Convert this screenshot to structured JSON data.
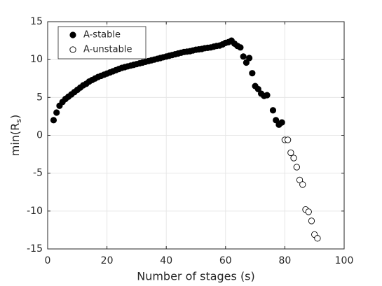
{
  "chart_data": {
    "type": "scatter",
    "xlabel": "Number of stages (s)",
    "ylabel": {
      "main": "min(R",
      "sub": "s",
      "end": ")"
    },
    "xlim": [
      0,
      100
    ],
    "xticks": [
      0,
      20,
      40,
      60,
      80,
      100
    ],
    "ylim": [
      -15,
      15
    ],
    "yticks": [
      -15,
      -10,
      -5,
      0,
      5,
      10,
      15
    ],
    "grid": true,
    "legend": "upper-left",
    "series": [
      {
        "name": "A-stable",
        "color": "#000000",
        "filled": true,
        "x": [
          2,
          3,
          4,
          5,
          6,
          7,
          8,
          9,
          10,
          11,
          12,
          13,
          14,
          15,
          16,
          17,
          18,
          19,
          20,
          21,
          22,
          23,
          24,
          25,
          26,
          27,
          28,
          29,
          30,
          31,
          32,
          33,
          34,
          35,
          36,
          37,
          38,
          39,
          40,
          41,
          42,
          43,
          44,
          45,
          46,
          47,
          48,
          49,
          50,
          51,
          52,
          53,
          54,
          55,
          56,
          57,
          58,
          59,
          60,
          61,
          62,
          63,
          64,
          65,
          66,
          67,
          68,
          69,
          70,
          71,
          72,
          73,
          74,
          76,
          77,
          78,
          79
        ],
        "values": [
          2.0,
          3.0,
          3.9,
          4.4,
          4.8,
          5.1,
          5.4,
          5.7,
          6.0,
          6.3,
          6.6,
          6.8,
          7.1,
          7.3,
          7.5,
          7.7,
          7.85,
          8.0,
          8.15,
          8.3,
          8.45,
          8.6,
          8.75,
          8.9,
          9.0,
          9.1,
          9.2,
          9.3,
          9.4,
          9.5,
          9.6,
          9.7,
          9.8,
          9.9,
          10.0,
          10.1,
          10.2,
          10.3,
          10.4,
          10.5,
          10.6,
          10.7,
          10.8,
          10.9,
          11.0,
          11.05,
          11.1,
          11.2,
          11.3,
          11.35,
          11.4,
          11.5,
          11.55,
          11.6,
          11.7,
          11.8,
          11.85,
          12.0,
          12.2,
          12.3,
          12.5,
          12.1,
          11.8,
          11.6,
          10.4,
          9.6,
          10.2,
          8.2,
          6.5,
          6.1,
          5.5,
          5.2,
          5.3,
          3.3,
          2.0,
          1.4,
          1.7
        ]
      },
      {
        "name": "A-unstable",
        "color": "#000000",
        "filled": false,
        "x": [
          80,
          81,
          82,
          83,
          84,
          85,
          86,
          87,
          88,
          89,
          90,
          91
        ],
        "values": [
          -0.6,
          -0.6,
          -2.3,
          -3.0,
          -4.2,
          -5.9,
          -6.5,
          -9.8,
          -10.1,
          -11.3,
          -13.1,
          -13.6
        ]
      }
    ]
  }
}
